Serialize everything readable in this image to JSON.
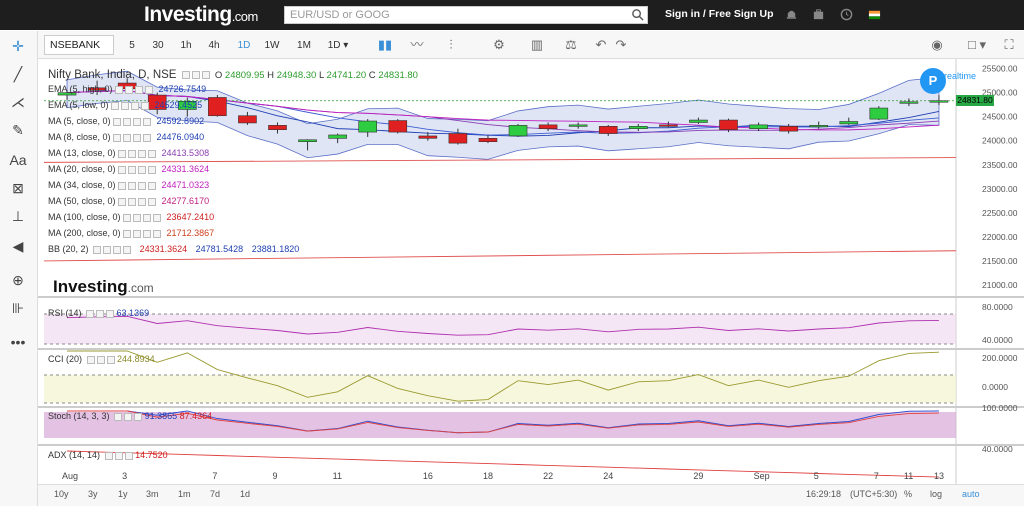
{
  "topbar": {
    "logo": "Investing",
    "logo_suffix": ".com",
    "search_placeholder": "EUR/USD or GOOG",
    "signin": "Sign in / Free Sign Up"
  },
  "toolbar": {
    "symbol": "NSEBANK",
    "timeframes": [
      "5",
      "30",
      "1h",
      "4h",
      "1D",
      "1W",
      "1M"
    ],
    "active_timeframe": "1D",
    "interval_select": "1D"
  },
  "chart": {
    "title": "Nifty Bank, India, D, NSE",
    "ohlc": {
      "o_label": "O",
      "o": "24809.95",
      "h_label": "H",
      "h": "24948.30",
      "l_label": "L",
      "l": "24741.20",
      "c_label": "C",
      "c": "24831.80"
    },
    "realtime_badge": "P",
    "realtime_label": "realtime",
    "current_price_tag": "24831.80",
    "watermark": "Investing",
    "watermark_suffix": ".com",
    "indicators": [
      {
        "label": "EMA (5, high, 0)",
        "value": "24726.7549",
        "color": "#1f3fb3"
      },
      {
        "label": "EMA (5, low, 0)",
        "value": "24529.4525",
        "color": "#1f3fb3"
      },
      {
        "label": "MA (5, close, 0)",
        "value": "24592.8902",
        "color": "#1f3fb3"
      },
      {
        "label": "MA (8, close, 0)",
        "value": "24476.0940",
        "color": "#1f3fb3"
      },
      {
        "label": "MA (13, close, 0)",
        "value": "24413.5308",
        "color": "#8b3fb3"
      },
      {
        "label": "MA (20, close, 0)",
        "value": "24331.3624",
        "color": "#c020c0"
      },
      {
        "label": "MA (34, close, 0)",
        "value": "24471.0323",
        "color": "#c020c0"
      },
      {
        "label": "MA (50, close, 0)",
        "value": "24277.6170",
        "color": "#c02080"
      },
      {
        "label": "MA (100, close, 0)",
        "value": "23647.2410",
        "color": "#d02020"
      },
      {
        "label": "MA (200, close, 0)",
        "value": "21712.3867",
        "color": "#d04020"
      }
    ],
    "bb": {
      "label": "BB (20, 2)",
      "values": [
        "24331.3624",
        "24781.5428",
        "23881.1820"
      ],
      "colors": [
        "#d02020",
        "#1f3fb3",
        "#1f3fb3"
      ]
    },
    "panels": {
      "rsi": {
        "label": "RSI (14)",
        "value": "63.1369",
        "value_color": "#1f3fb3"
      },
      "cci": {
        "label": "CCI (20)",
        "value": "244.8934",
        "value_color": "#8a8a2a"
      },
      "stoch": {
        "label": "Stoch (14, 3, 3)",
        "values": [
          "91.3865",
          "87.4364"
        ],
        "value_colors": [
          "#1f3fb3",
          "#d02020"
        ]
      },
      "adx": {
        "label": "ADX (14, 14)",
        "value": "14.7520",
        "value_color": "#d02020"
      }
    }
  },
  "bottom": {
    "ranges": [
      "10y",
      "3y",
      "1y",
      "3m",
      "1m",
      "7d",
      "1d"
    ],
    "time": "16:29:18",
    "tz": "(UTC+5:30)",
    "pct": "%",
    "log": "log",
    "auto": "auto"
  },
  "chart_data": {
    "type": "candlestick",
    "title": "Nifty Bank, India, D, NSE",
    "x_tick_labels": [
      "Aug",
      "3",
      "7",
      "9",
      "11",
      "16",
      "18",
      "22",
      "24",
      "29",
      "Sep",
      "5",
      "7",
      "11",
      "13"
    ],
    "y_tick_labels": [
      "25500.00",
      "25000.00",
      "24500.00",
      "24000.00",
      "23500.00",
      "23000.00",
      "22500.00",
      "22000.00",
      "21500.00",
      "21000.00"
    ],
    "ylim": [
      20750,
      25700
    ],
    "candles": [
      {
        "o": 24950,
        "h": 25050,
        "l": 24850,
        "c": 25000
      },
      {
        "o": 25100,
        "h": 25250,
        "l": 24950,
        "c": 25050
      },
      {
        "o": 25200,
        "h": 25300,
        "l": 25050,
        "c": 25080
      },
      {
        "o": 24950,
        "h": 25000,
        "l": 24550,
        "c": 24650
      },
      {
        "o": 24650,
        "h": 24900,
        "l": 24500,
        "c": 24820
      },
      {
        "o": 24900,
        "h": 24950,
        "l": 24500,
        "c": 24520
      },
      {
        "o": 24520,
        "h": 24600,
        "l": 24330,
        "c": 24370
      },
      {
        "o": 24320,
        "h": 24380,
        "l": 24150,
        "c": 24230
      },
      {
        "o": 23980,
        "h": 24030,
        "l": 23800,
        "c": 24020
      },
      {
        "o": 24050,
        "h": 24150,
        "l": 23950,
        "c": 24120
      },
      {
        "o": 24180,
        "h": 24450,
        "l": 24080,
        "c": 24410
      },
      {
        "o": 24420,
        "h": 24450,
        "l": 24150,
        "c": 24180
      },
      {
        "o": 24100,
        "h": 24180,
        "l": 24000,
        "c": 24050
      },
      {
        "o": 24150,
        "h": 24250,
        "l": 23920,
        "c": 23950
      },
      {
        "o": 24050,
        "h": 24120,
        "l": 23950,
        "c": 23980
      },
      {
        "o": 24100,
        "h": 24350,
        "l": 24080,
        "c": 24320
      },
      {
        "o": 24330,
        "h": 24380,
        "l": 24200,
        "c": 24250
      },
      {
        "o": 24300,
        "h": 24380,
        "l": 24250,
        "c": 24330
      },
      {
        "o": 24300,
        "h": 24330,
        "l": 24100,
        "c": 24150
      },
      {
        "o": 24250,
        "h": 24350,
        "l": 24200,
        "c": 24300
      },
      {
        "o": 24330,
        "h": 24400,
        "l": 24280,
        "c": 24320
      },
      {
        "o": 24380,
        "h": 24480,
        "l": 24350,
        "c": 24430
      },
      {
        "o": 24430,
        "h": 24460,
        "l": 24180,
        "c": 24230
      },
      {
        "o": 24250,
        "h": 24380,
        "l": 24200,
        "c": 24330
      },
      {
        "o": 24300,
        "h": 24350,
        "l": 24150,
        "c": 24200
      },
      {
        "o": 24300,
        "h": 24400,
        "l": 24250,
        "c": 24320
      },
      {
        "o": 24350,
        "h": 24480,
        "l": 24330,
        "c": 24400
      },
      {
        "o": 24450,
        "h": 24720,
        "l": 24430,
        "c": 24680
      },
      {
        "o": 24780,
        "h": 24880,
        "l": 24720,
        "c": 24810
      },
      {
        "o": 24810,
        "h": 24948,
        "l": 24741,
        "c": 24832
      }
    ]
  }
}
